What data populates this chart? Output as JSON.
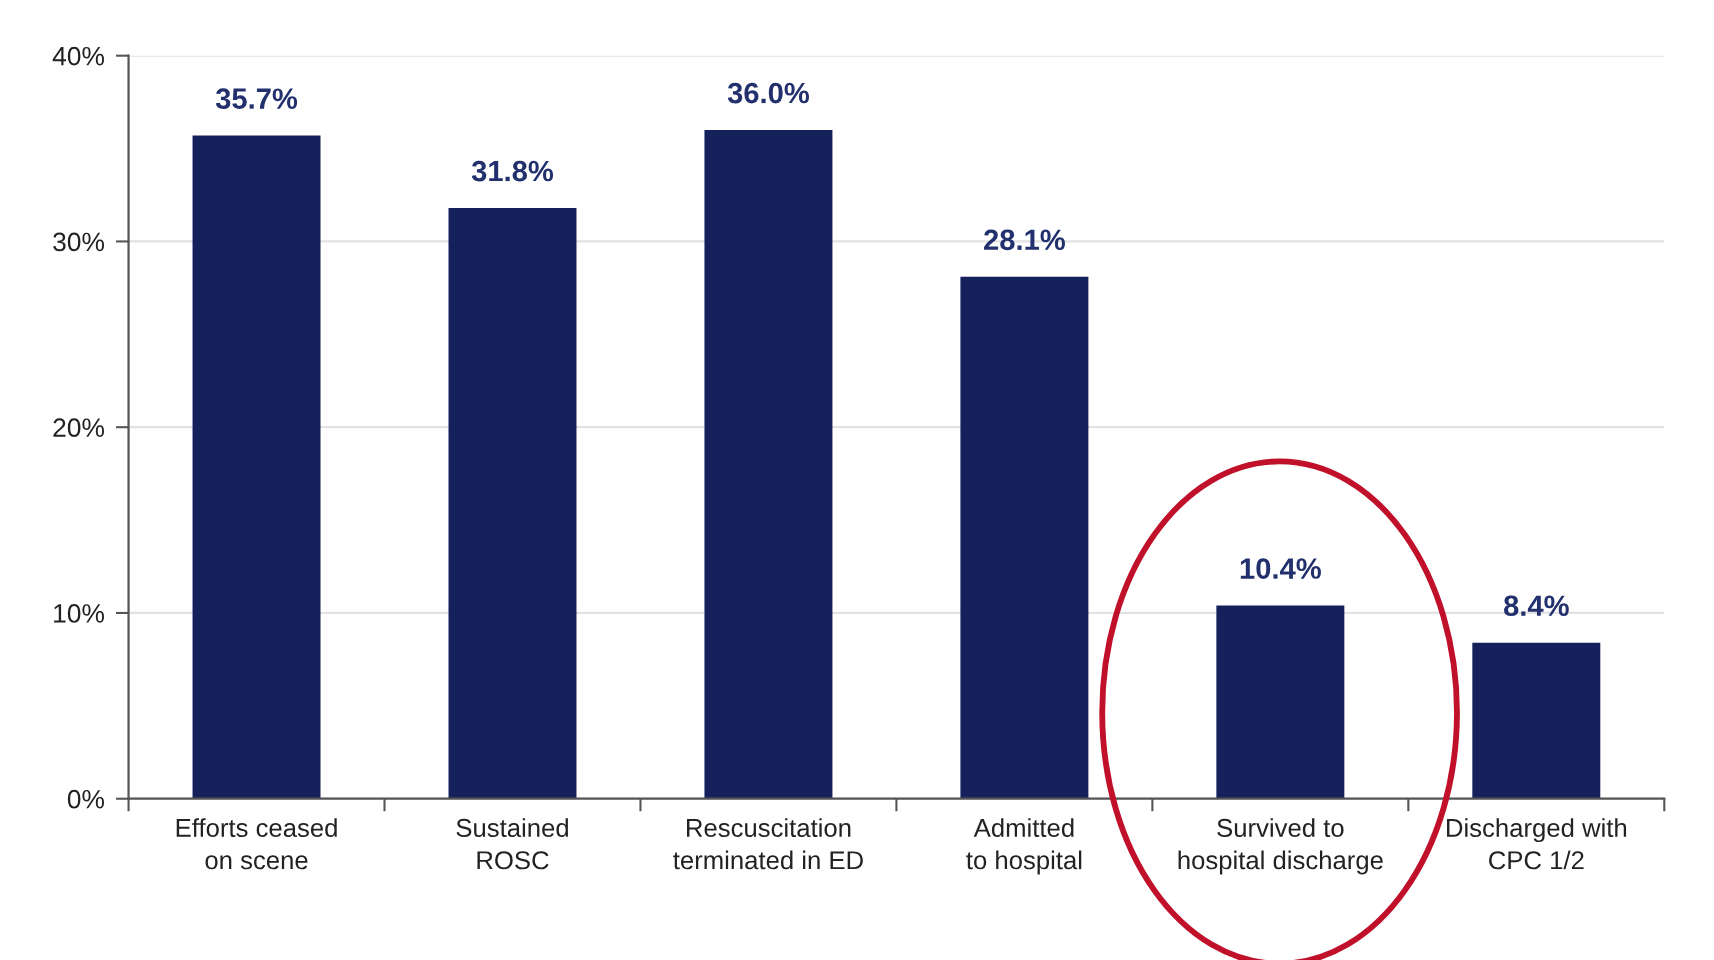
{
  "chart_data": {
    "type": "bar",
    "categories": [
      "Efforts ceased\non scene",
      "Sustained\nROSC",
      "Rescuscitation\nterminated in ED",
      "Admitted\nto hospital",
      "Survived to\nhospital discharge",
      "Discharged with\nCPC 1/2"
    ],
    "values": [
      35.7,
      31.8,
      36.0,
      28.1,
      10.4,
      8.4
    ],
    "value_labels": [
      "35.7%",
      "31.8%",
      "36.0%",
      "28.1%",
      "10.4%",
      "8.4%"
    ],
    "color": "#14215b",
    "ylim": [
      0,
      40
    ],
    "yticks": [
      {
        "value": 0,
        "label": "0%"
      },
      {
        "value": 10,
        "label": "10%"
      },
      {
        "value": 20,
        "label": "20%"
      },
      {
        "value": 30,
        "label": "30%"
      },
      {
        "value": 40,
        "label": "40%"
      }
    ],
    "grid": "y"
  }
}
